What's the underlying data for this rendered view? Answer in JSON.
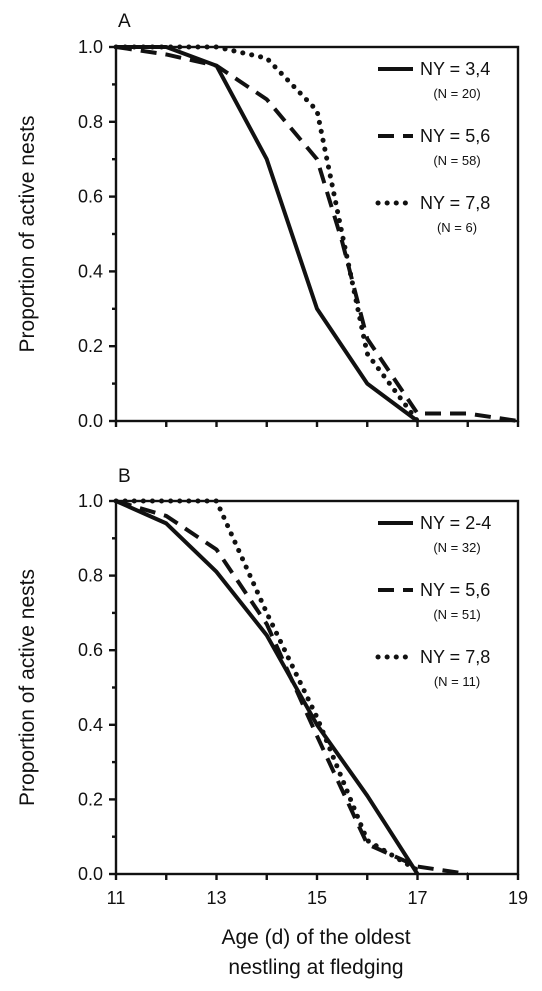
{
  "figure": {
    "xlabel_line1": "Age (d) of the oldest",
    "xlabel_line2": "nestling at fledging"
  },
  "chart_data": [
    {
      "type": "line",
      "panel": "A",
      "ylabel": "Proportion of active nests",
      "xlim": [
        11,
        19
      ],
      "ylim": [
        0,
        1.0
      ],
      "xticks": [
        11,
        13,
        15,
        17,
        19
      ],
      "yticks": [
        "0.0",
        "0.2",
        "0.4",
        "0.6",
        "0.8",
        "1.0"
      ],
      "grid": false,
      "legend_position": "top-right",
      "series": [
        {
          "name": "NY = 3,4",
          "n_label": "(N = 20)",
          "style": "solid",
          "x": [
            11,
            12,
            13,
            14,
            15,
            16,
            17
          ],
          "y": [
            1.0,
            1.0,
            0.95,
            0.7,
            0.3,
            0.1,
            0.0
          ]
        },
        {
          "name": "NY = 5,6",
          "n_label": "(N = 58)",
          "style": "dashed",
          "x": [
            11,
            12,
            13,
            14,
            15,
            15.5,
            16,
            17,
            18,
            19
          ],
          "y": [
            1.0,
            0.98,
            0.95,
            0.86,
            0.7,
            0.48,
            0.22,
            0.02,
            0.02,
            0.0
          ]
        },
        {
          "name": "NY = 7,8",
          "n_label": "(N = 6)",
          "style": "dotted",
          "x": [
            11,
            12,
            13,
            14,
            15,
            15.5,
            16,
            17
          ],
          "y": [
            1.0,
            1.0,
            1.0,
            0.97,
            0.83,
            0.5,
            0.18,
            0.0
          ]
        }
      ]
    },
    {
      "type": "line",
      "panel": "B",
      "ylabel": "Proportion of active nests",
      "xlim": [
        11,
        19
      ],
      "ylim": [
        0,
        1.0
      ],
      "xticks": [
        11,
        13,
        15,
        17,
        19
      ],
      "yticks": [
        "0.0",
        "0.2",
        "0.4",
        "0.6",
        "0.8",
        "1.0"
      ],
      "grid": false,
      "legend_position": "top-right",
      "series": [
        {
          "name": "NY = 2-4",
          "n_label": "(N = 32)",
          "style": "solid",
          "x": [
            11,
            12,
            13,
            14,
            15,
            16,
            17
          ],
          "y": [
            1.0,
            0.94,
            0.81,
            0.64,
            0.4,
            0.21,
            0.0
          ]
        },
        {
          "name": "NY = 5,6",
          "n_label": "(N = 51)",
          "style": "dashed",
          "x": [
            11,
            12,
            13,
            14,
            15,
            16,
            17,
            18
          ],
          "y": [
            1.0,
            0.96,
            0.87,
            0.67,
            0.37,
            0.08,
            0.02,
            0.0
          ]
        },
        {
          "name": "NY = 7,8",
          "n_label": "(N = 11)",
          "style": "dotted",
          "x": [
            11,
            12,
            13,
            14,
            15,
            16,
            17
          ],
          "y": [
            1.0,
            1.0,
            1.0,
            0.7,
            0.42,
            0.09,
            0.01
          ]
        }
      ]
    }
  ]
}
